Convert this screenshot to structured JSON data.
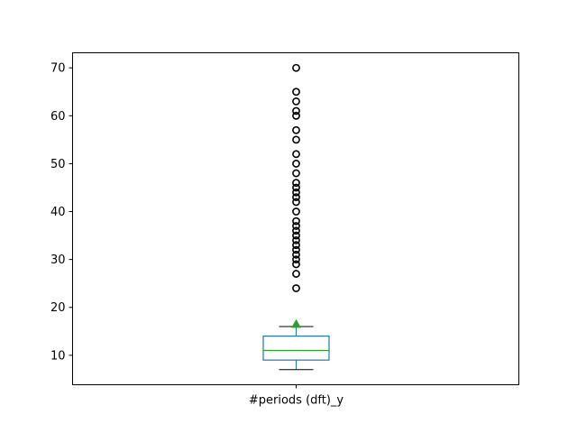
{
  "chart_data": {
    "type": "box",
    "title": "",
    "xlabel": "",
    "ylabel": "",
    "categories": [
      "#periods (dft)_y"
    ],
    "ylim": [
      3.85,
      73.15
    ],
    "yticks": [
      10,
      20,
      30,
      40,
      50,
      60,
      70
    ],
    "grid": false,
    "box": {
      "whisker_low": 7,
      "q1": 9,
      "median": 11,
      "q3": 14,
      "whisker_high": 16,
      "mean": 16.5,
      "outliers": [
        24,
        27,
        29,
        30,
        31,
        32,
        33,
        34,
        35,
        36,
        37,
        38,
        40,
        42,
        43,
        44,
        45,
        46,
        48,
        50,
        52,
        55,
        57,
        60,
        61,
        63,
        65,
        70
      ]
    },
    "colors": {
      "box": "#1f77b4",
      "median": "#2ca02c",
      "mean_marker": "#2ca02c",
      "whisker": "#000000",
      "outlier": "#000000"
    }
  }
}
